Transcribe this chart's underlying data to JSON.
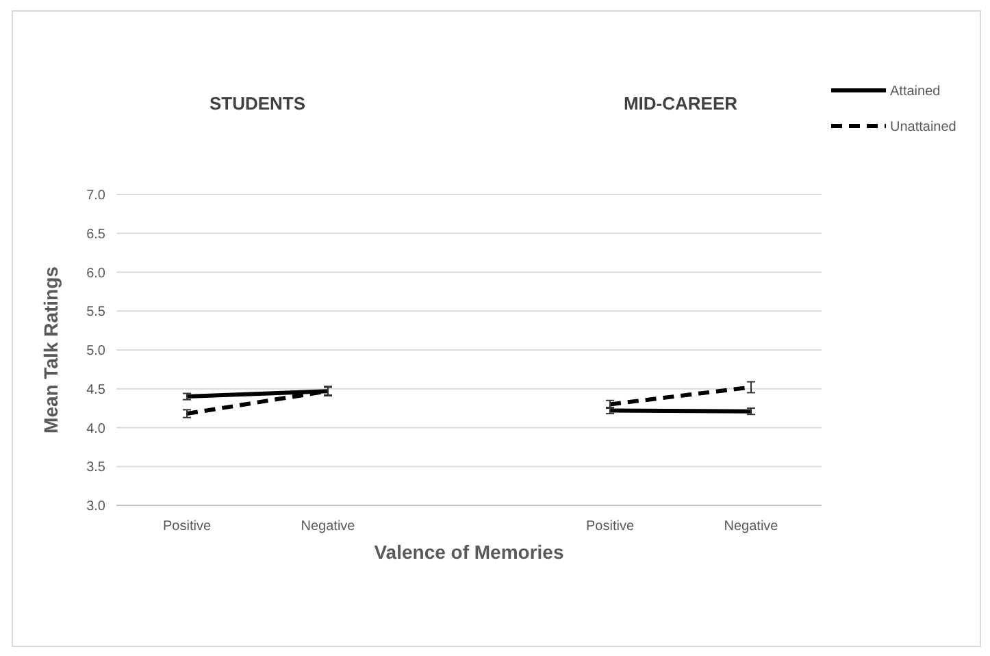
{
  "chart_data": {
    "type": "line",
    "ylabel": "Mean Talk Ratings",
    "xlabel": "Valence of Memories",
    "annotations": [
      "STUDENTS",
      "MID-CAREER"
    ],
    "categories": [
      "Positive",
      "Negative",
      null,
      "Positive",
      "Negative"
    ],
    "series": [
      {
        "name": "Attained",
        "color": "#000000",
        "line_style": "solid",
        "values": [
          4.4,
          4.47,
          null,
          4.22,
          4.21
        ],
        "errors": [
          0.04,
          0.06,
          null,
          0.04,
          0.04
        ]
      },
      {
        "name": "Unattained",
        "color": "#000000",
        "line_style": "dashed",
        "values": [
          4.18,
          4.47,
          null,
          4.3,
          4.52
        ],
        "errors": [
          0.05,
          0.05,
          null,
          0.05,
          0.07
        ]
      }
    ],
    "ylim": [
      3,
      7
    ],
    "yticks": [
      {
        "value": 3,
        "label": "3.0"
      },
      {
        "value": 3.5,
        "label": "3.5"
      },
      {
        "value": 4,
        "label": "4.0"
      },
      {
        "value": 4.5,
        "label": "4.5"
      },
      {
        "value": 5,
        "label": "5.0"
      },
      {
        "value": 5.5,
        "label": "5.5"
      },
      {
        "value": 6,
        "label": "6.0"
      },
      {
        "value": 6.5,
        "label": "6.5"
      },
      {
        "value": 7,
        "label": "7.0"
      }
    ],
    "grid": "y",
    "legend": "top right"
  }
}
